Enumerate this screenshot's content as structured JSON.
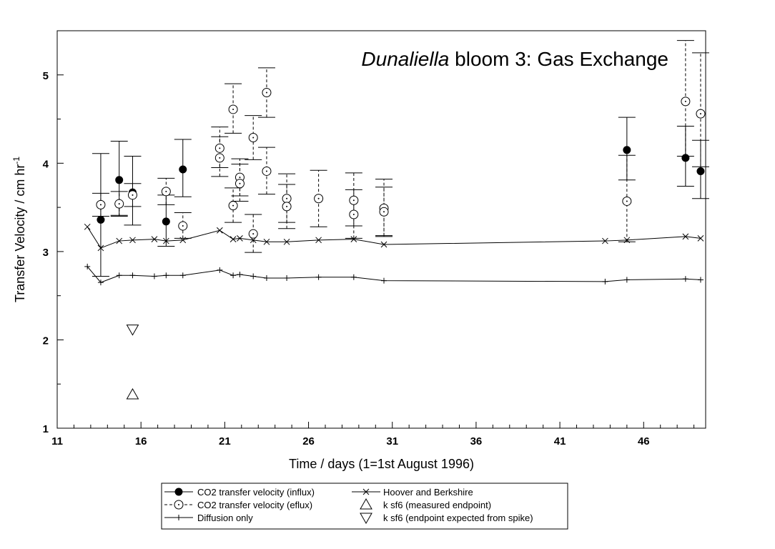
{
  "chart_data": {
    "type": "scatter",
    "title_italic": "Dunaliella",
    "title_rest": " bloom 3: Gas Exchange",
    "xlabel": "Time / days (1=1st August 1996)",
    "ylabel_main": "Transfer Velocity / cm hr",
    "ylabel_sup": "-1",
    "xlim": [
      11,
      49.7
    ],
    "ylim": [
      1,
      5.5
    ],
    "x_ticks": [
      11,
      16,
      21,
      26,
      31,
      36,
      41,
      46
    ],
    "x_tick_labels": [
      "11",
      "16",
      "21",
      "26",
      "31",
      "36",
      "41",
      "46"
    ],
    "y_ticks": [
      1,
      2,
      3,
      4,
      5
    ],
    "y_tick_labels": [
      "1",
      "2",
      "3",
      "4",
      "5"
    ],
    "grid": false,
    "legend_position": "bottom-center",
    "series": [
      {
        "name": "CO2 transfer velocity (influx)",
        "marker": "filled-circle",
        "errorbar": "solid",
        "points": [
          {
            "x": 13.6,
            "y": 3.36,
            "lo": 2.72,
            "hi": 4.11
          },
          {
            "x": 14.7,
            "y": 3.81,
            "lo": 3.41,
            "hi": 4.25
          },
          {
            "x": 15.5,
            "y": 3.67,
            "lo": 3.3,
            "hi": 4.08
          },
          {
            "x": 17.5,
            "y": 3.34,
            "lo": 3.06,
            "hi": 3.64
          },
          {
            "x": 18.5,
            "y": 3.93,
            "lo": 3.62,
            "hi": 4.27
          },
          {
            "x": 45.0,
            "y": 4.15,
            "lo": 3.81,
            "hi": 4.52
          },
          {
            "x": 48.5,
            "y": 4.06,
            "lo": 3.74,
            "hi": 4.42
          },
          {
            "x": 49.4,
            "y": 3.91,
            "lo": 3.6,
            "hi": 4.26
          }
        ]
      },
      {
        "name": "CO2 transfer velocity (eflux)",
        "marker": "open-circle",
        "errorbar": "dashed",
        "points": [
          {
            "x": 13.6,
            "y": 3.53,
            "lo": 3.4,
            "hi": 3.66
          },
          {
            "x": 14.7,
            "y": 3.54,
            "lo": 3.4,
            "hi": 3.68
          },
          {
            "x": 15.5,
            "y": 3.64,
            "lo": 3.51,
            "hi": 3.77
          },
          {
            "x": 17.5,
            "y": 3.68,
            "lo": 3.53,
            "hi": 3.83
          },
          {
            "x": 18.5,
            "y": 3.29,
            "lo": 3.15,
            "hi": 3.44
          },
          {
            "x": 20.7,
            "y": 4.17,
            "lo": 3.95,
            "hi": 4.41
          },
          {
            "x": 20.7,
            "y": 4.06,
            "lo": 3.85,
            "hi": 4.3
          },
          {
            "x": 21.5,
            "y": 4.61,
            "lo": 4.34,
            "hi": 4.9
          },
          {
            "x": 21.5,
            "y": 3.52,
            "lo": 3.33,
            "hi": 3.72
          },
          {
            "x": 21.9,
            "y": 3.84,
            "lo": 3.63,
            "hi": 4.05
          },
          {
            "x": 21.9,
            "y": 3.77,
            "lo": 3.57,
            "hi": 3.99
          },
          {
            "x": 22.7,
            "y": 4.29,
            "lo": 4.04,
            "hi": 4.54
          },
          {
            "x": 22.7,
            "y": 3.2,
            "lo": 2.99,
            "hi": 3.42
          },
          {
            "x": 23.5,
            "y": 4.8,
            "lo": 4.52,
            "hi": 5.08
          },
          {
            "x": 23.5,
            "y": 3.91,
            "lo": 3.65,
            "hi": 4.18
          },
          {
            "x": 24.7,
            "y": 3.6,
            "lo": 3.33,
            "hi": 3.88
          },
          {
            "x": 24.7,
            "y": 3.51,
            "lo": 3.26,
            "hi": 3.76
          },
          {
            "x": 26.6,
            "y": 3.6,
            "lo": 3.28,
            "hi": 3.92
          },
          {
            "x": 28.7,
            "y": 3.58,
            "lo": 3.29,
            "hi": 3.89
          },
          {
            "x": 28.7,
            "y": 3.42,
            "lo": 3.15,
            "hi": 3.7
          },
          {
            "x": 30.5,
            "y": 3.49,
            "lo": 3.18,
            "hi": 3.82
          },
          {
            "x": 30.5,
            "y": 3.45,
            "lo": 3.17,
            "hi": 3.73
          },
          {
            "x": 45.0,
            "y": 3.57,
            "lo": 3.11,
            "hi": 4.09
          },
          {
            "x": 48.5,
            "y": 4.7,
            "lo": 4.08,
            "hi": 5.39
          },
          {
            "x": 49.4,
            "y": 4.56,
            "lo": 3.96,
            "hi": 5.25
          }
        ]
      },
      {
        "name": "Diffusion only",
        "marker": "plus",
        "line": true,
        "x": [
          12.8,
          13.6,
          14.7,
          15.5,
          16.8,
          17.5,
          18.5,
          20.7,
          21.5,
          21.9,
          22.7,
          23.5,
          24.7,
          26.6,
          28.7,
          30.5,
          43.7,
          45.0,
          48.5,
          49.4
        ],
        "y": [
          2.83,
          2.65,
          2.73,
          2.73,
          2.72,
          2.73,
          2.73,
          2.79,
          2.73,
          2.74,
          2.72,
          2.7,
          2.7,
          2.71,
          2.71,
          2.67,
          2.66,
          2.68,
          2.69,
          2.68
        ]
      },
      {
        "name": "Hoover and Berkshire",
        "marker": "x",
        "line": true,
        "x": [
          12.8,
          13.6,
          14.7,
          15.5,
          16.8,
          17.5,
          18.5,
          20.7,
          21.5,
          21.9,
          22.7,
          23.5,
          24.7,
          26.6,
          28.7,
          30.5,
          43.7,
          45.0,
          48.5,
          49.4
        ],
        "y": [
          3.28,
          3.04,
          3.12,
          3.13,
          3.14,
          3.12,
          3.13,
          3.24,
          3.14,
          3.15,
          3.13,
          3.11,
          3.11,
          3.13,
          3.14,
          3.08,
          3.12,
          3.13,
          3.17,
          3.15
        ]
      },
      {
        "name": "k sf6 (measured endpoint)",
        "marker": "triangle-up",
        "x": [
          15.5
        ],
        "y": [
          1.38
        ]
      },
      {
        "name": "k sf6 (endpoint expected from spike)",
        "marker": "triangle-down",
        "x": [
          15.5
        ],
        "y": [
          2.12
        ]
      }
    ]
  }
}
